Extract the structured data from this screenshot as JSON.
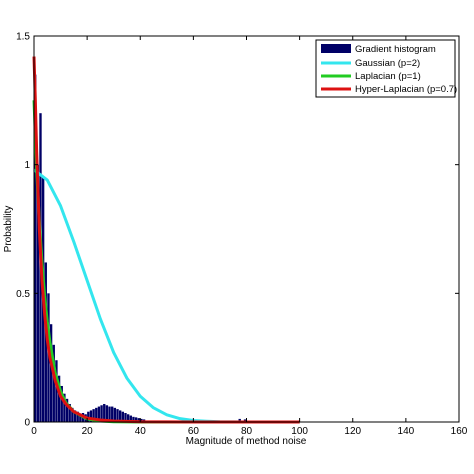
{
  "chart_data": {
    "type": "bar",
    "title": "",
    "xlabel": "Magnitude of method noise",
    "ylabel": "Probability",
    "xlim": [
      0,
      160
    ],
    "ylim": [
      0,
      1.5
    ],
    "xticks": [
      0,
      20,
      40,
      60,
      80,
      100,
      120,
      140,
      160
    ],
    "xtick_labels": [
      "0",
      "20",
      "40",
      "60",
      "80",
      "100",
      "120",
      "140",
      "160"
    ],
    "yticks": [
      0,
      0.5,
      1,
      1.5
    ],
    "ytick_labels": [
      "0",
      "0.5",
      "1",
      "1.5"
    ],
    "grid": false,
    "legend_position": "top-right",
    "histogram": {
      "name": "Gradient histogram",
      "color": "#000066",
      "bin_width": 1,
      "x": [
        0,
        1,
        2,
        3,
        4,
        5,
        6,
        7,
        8,
        9,
        10,
        11,
        12,
        13,
        14,
        15,
        16,
        17,
        18,
        19,
        20,
        21,
        22,
        23,
        24,
        25,
        26,
        27,
        28,
        29,
        30,
        31,
        32,
        33,
        34,
        35,
        36,
        37,
        38,
        39,
        40,
        41,
        56,
        77,
        79
      ],
      "values": [
        1.35,
        1.0,
        1.2,
        0.95,
        0.62,
        0.5,
        0.38,
        0.3,
        0.24,
        0.18,
        0.14,
        0.11,
        0.09,
        0.07,
        0.055,
        0.045,
        0.04,
        0.03,
        0.035,
        0.03,
        0.04,
        0.045,
        0.05,
        0.055,
        0.06,
        0.065,
        0.07,
        0.065,
        0.06,
        0.06,
        0.055,
        0.05,
        0.045,
        0.04,
        0.035,
        0.03,
        0.025,
        0.02,
        0.018,
        0.015,
        0.012,
        0.01,
        0.015,
        0.012,
        0.01
      ]
    },
    "series": [
      {
        "name": "Gaussian (p=2)",
        "color": "#33e6ee",
        "x": [
          0,
          5,
          10,
          15,
          20,
          25,
          30,
          35,
          40,
          45,
          50,
          55,
          60,
          65,
          70,
          80,
          90,
          100
        ],
        "y": [
          0.98,
          0.94,
          0.84,
          0.7,
          0.55,
          0.4,
          0.27,
          0.17,
          0.1,
          0.055,
          0.028,
          0.013,
          0.006,
          0.003,
          0.001,
          0,
          0,
          0
        ]
      },
      {
        "name": "Laplacian (p=1)",
        "color": "#22cc22",
        "x": [
          0,
          1,
          2,
          3,
          4,
          5,
          6,
          8,
          10,
          12,
          15,
          20,
          25,
          30,
          40,
          60,
          80,
          100
        ],
        "y": [
          1.25,
          0.98,
          0.78,
          0.62,
          0.49,
          0.39,
          0.31,
          0.19,
          0.12,
          0.075,
          0.04,
          0.012,
          0.004,
          0.001,
          0,
          0,
          0,
          0
        ]
      },
      {
        "name": "Hyper-Laplacian (p=0.7)",
        "color": "#dd1111",
        "x": [
          0,
          0.5,
          1,
          2,
          3,
          4,
          5,
          6,
          8,
          10,
          12,
          15,
          20,
          25,
          30,
          40,
          60,
          80,
          100
        ],
        "y": [
          1.42,
          1.25,
          1.05,
          0.75,
          0.55,
          0.42,
          0.32,
          0.25,
          0.16,
          0.1,
          0.07,
          0.04,
          0.015,
          0.008,
          0.004,
          0.001,
          0,
          0,
          0
        ]
      }
    ]
  }
}
